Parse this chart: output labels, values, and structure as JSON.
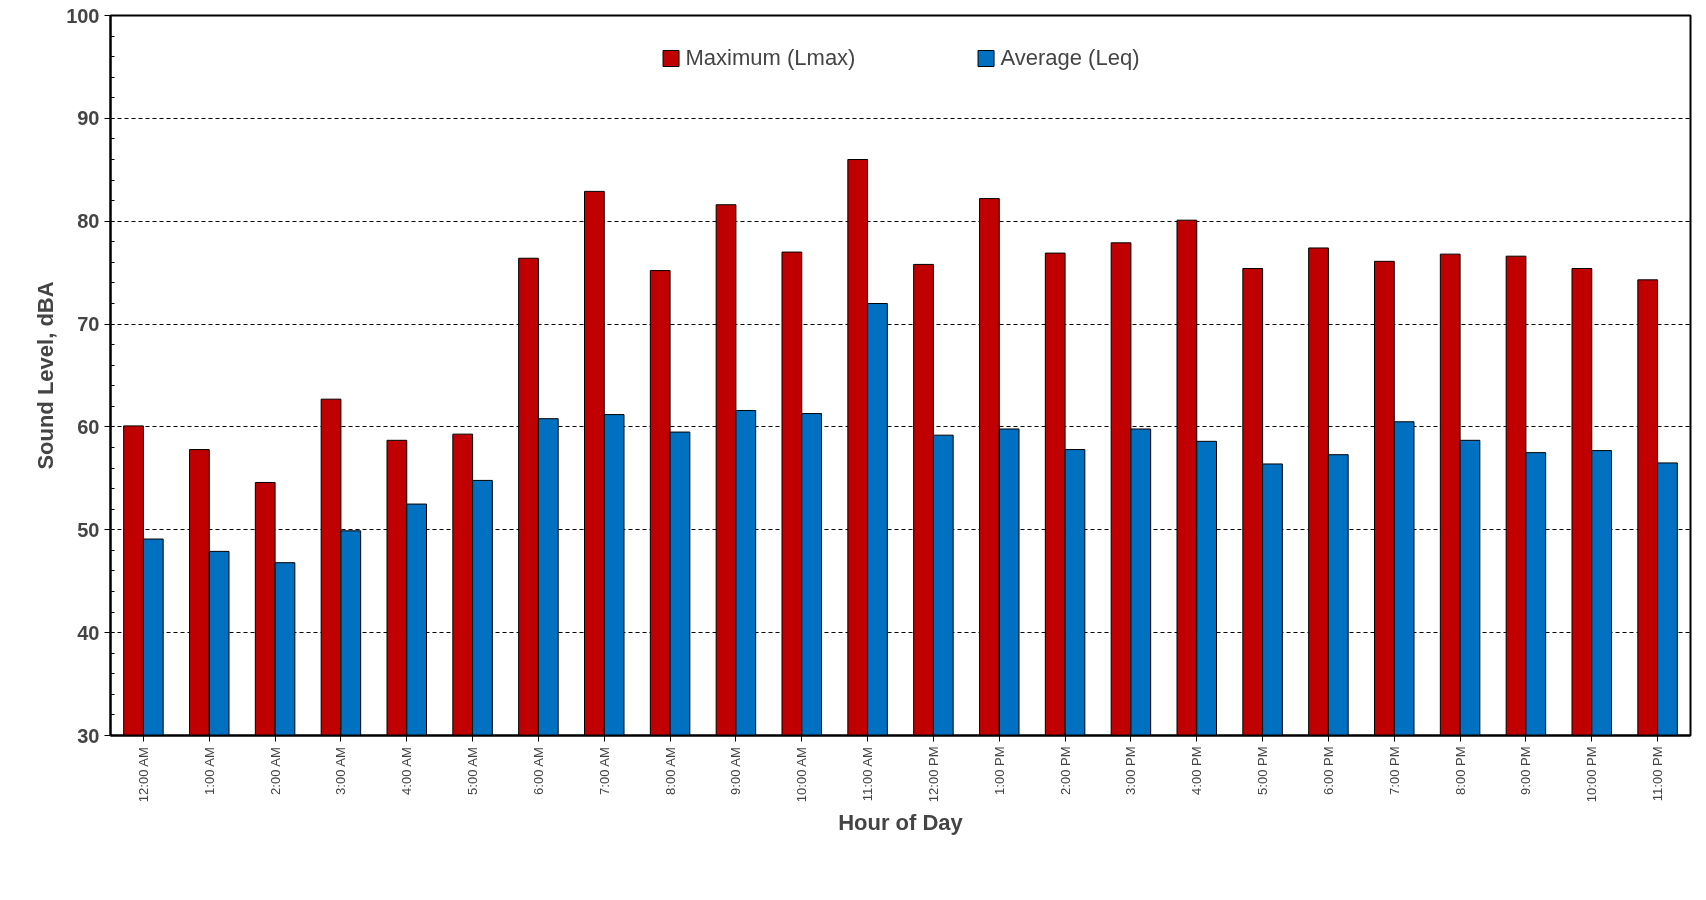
{
  "chart_data": {
    "type": "bar",
    "xlabel": "Hour of Day",
    "ylabel": "Sound Level, dBA",
    "categories": [
      "12:00 AM",
      "1:00 AM",
      "2:00 AM",
      "3:00 AM",
      "4:00 AM",
      "5:00 AM",
      "6:00 AM",
      "7:00 AM",
      "8:00 AM",
      "9:00 AM",
      "10:00 AM",
      "11:00 AM",
      "12:00 PM",
      "1:00 PM",
      "2:00 PM",
      "3:00 PM",
      "4:00 PM",
      "5:00 PM",
      "6:00 PM",
      "7:00 PM",
      "8:00 PM",
      "9:00 PM",
      "10:00 PM",
      "11:00 PM"
    ],
    "series": [
      {
        "name": "Maximum (Lmax)",
        "color": "#c00000",
        "values": [
          60.1,
          57.8,
          54.6,
          62.7,
          58.7,
          59.3,
          76.4,
          82.9,
          75.2,
          81.6,
          77.0,
          86.0,
          75.8,
          82.2,
          76.9,
          77.9,
          80.1,
          75.4,
          77.4,
          76.1,
          76.8,
          76.6,
          75.4,
          74.3
        ]
      },
      {
        "name": "Average (Leq)",
        "color": "#0070c0",
        "values": [
          49.1,
          47.9,
          46.8,
          49.9,
          52.5,
          54.8,
          60.8,
          61.2,
          59.5,
          61.6,
          61.3,
          72.0,
          59.2,
          59.8,
          57.8,
          59.8,
          58.6,
          56.4,
          57.3,
          60.5,
          58.7,
          57.5,
          57.7,
          56.5
        ]
      }
    ],
    "ylim": [
      30,
      100
    ],
    "yticks": [
      30,
      40,
      50,
      60,
      70,
      80,
      90,
      100
    ],
    "grid": "y",
    "legend": "top"
  }
}
